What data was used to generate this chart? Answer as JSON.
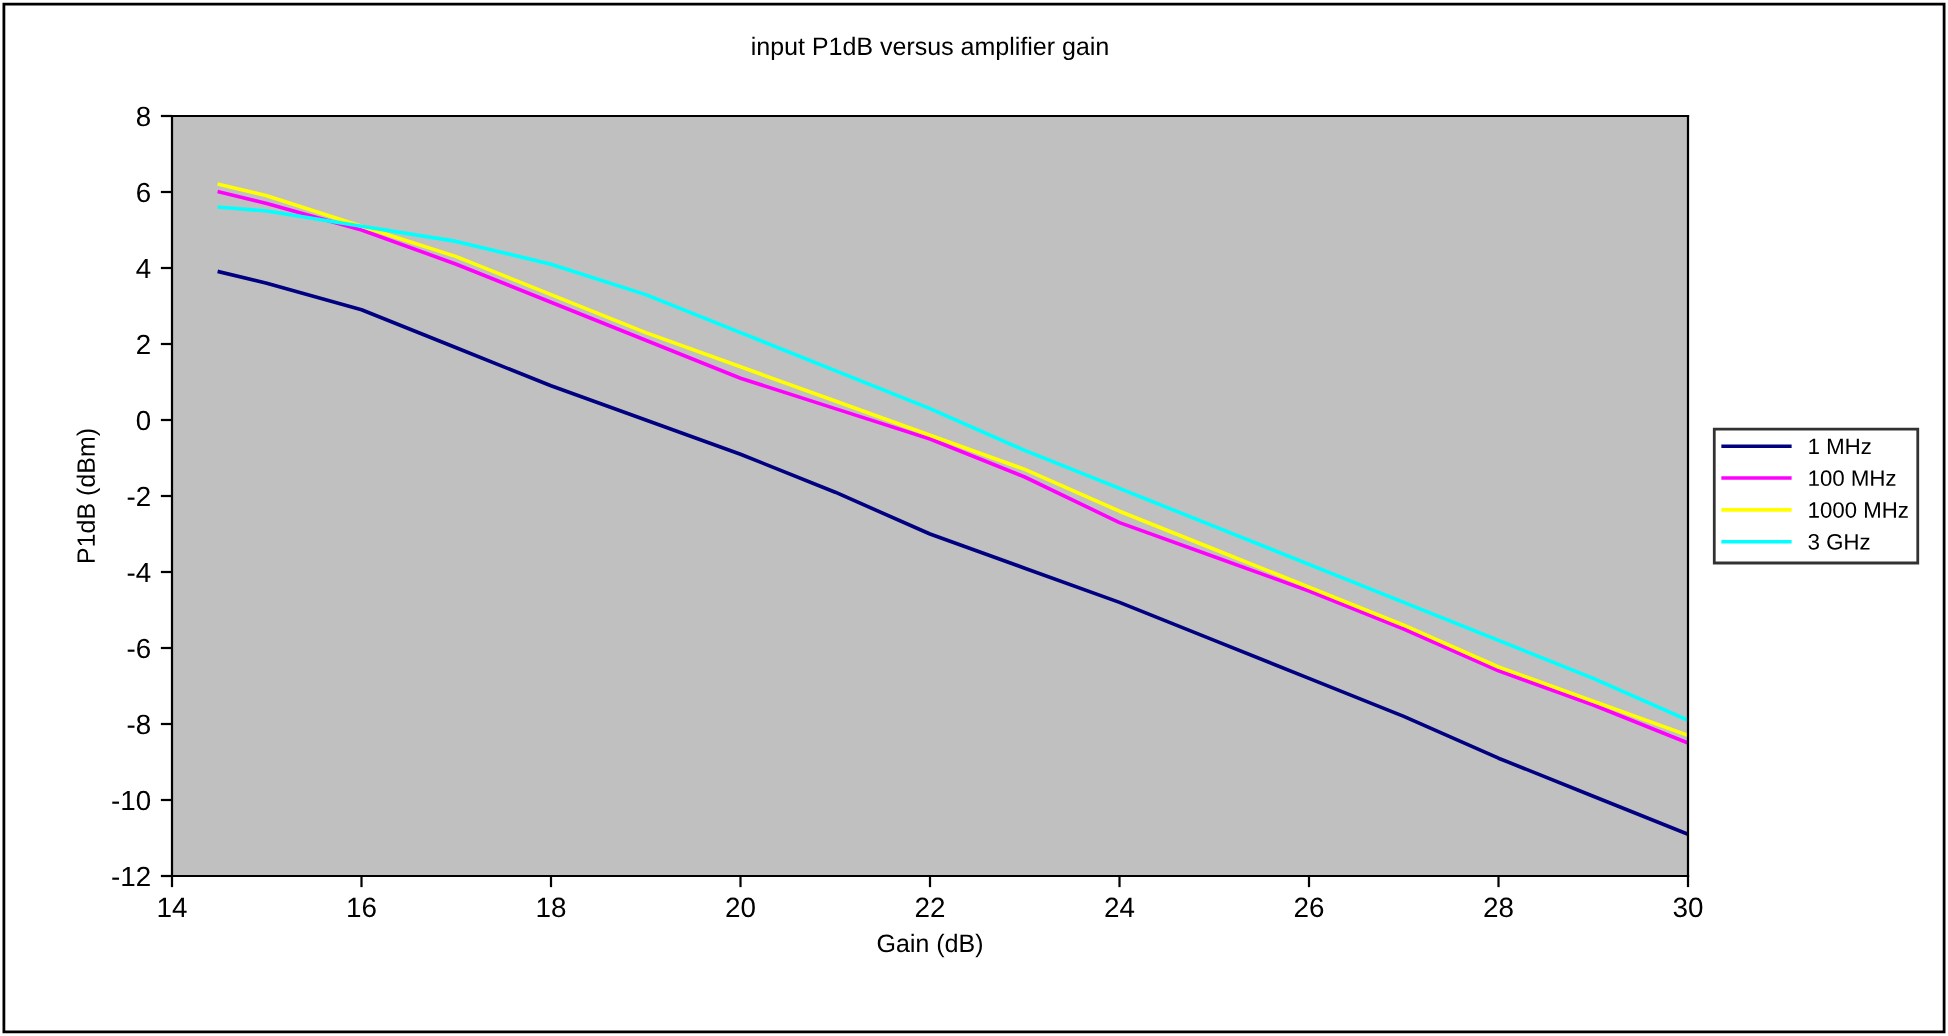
{
  "chart_data": {
    "type": "line",
    "title": "input P1dB versus amplifier gain",
    "xlabel": "Gain (dB)",
    "ylabel": "P1dB (dBm)",
    "x": [
      14.5,
      15,
      16,
      17,
      18,
      19,
      20,
      21,
      22,
      23,
      24,
      25,
      26,
      27,
      28,
      29,
      30
    ],
    "series": [
      {
        "name": "1 MHz",
        "color": "#000080",
        "values": [
          3.9,
          3.6,
          2.9,
          1.9,
          0.9,
          0.0,
          -0.9,
          -1.9,
          -3.0,
          -3.9,
          -4.8,
          -5.8,
          -6.8,
          -7.8,
          -8.9,
          -9.9,
          -10.9
        ]
      },
      {
        "name": "100 MHz",
        "color": "#ff00ff",
        "values": [
          6.0,
          5.7,
          5.0,
          4.1,
          3.1,
          2.1,
          1.1,
          0.3,
          -0.5,
          -1.5,
          -2.7,
          -3.6,
          -4.5,
          -5.5,
          -6.6,
          -7.5,
          -8.5
        ]
      },
      {
        "name": "1000 MHz",
        "color": "#ffff00",
        "values": [
          6.2,
          5.9,
          5.1,
          4.3,
          3.3,
          2.3,
          1.4,
          0.5,
          -0.4,
          -1.3,
          -2.4,
          -3.4,
          -4.4,
          -5.4,
          -6.5,
          -7.4,
          -8.3
        ]
      },
      {
        "name": "3 GHz",
        "color": "#00ffff",
        "values": [
          5.6,
          5.5,
          5.1,
          4.7,
          4.1,
          3.3,
          2.3,
          1.3,
          0.3,
          -0.8,
          -1.8,
          -2.8,
          -3.8,
          -4.8,
          -5.8,
          -6.8,
          -7.9
        ]
      }
    ],
    "xlim": [
      14,
      30
    ],
    "xticks": [
      14,
      16,
      18,
      20,
      22,
      24,
      26,
      28,
      30
    ],
    "ylim": [
      -12,
      8
    ],
    "yticks": [
      -12,
      -10,
      -8,
      -6,
      -4,
      -2,
      0,
      2,
      4,
      6,
      8
    ],
    "grid": false,
    "legend": "right",
    "marker": "none",
    "line_style": "solid"
  }
}
